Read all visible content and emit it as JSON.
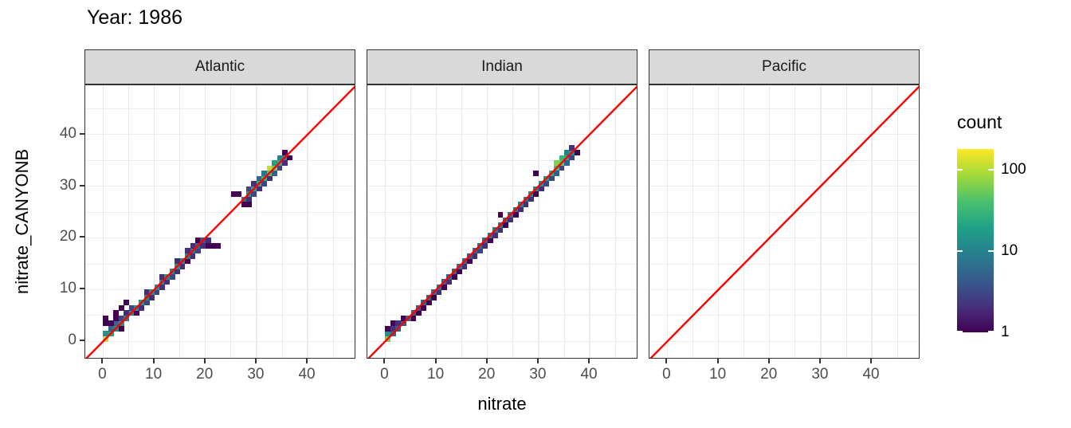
{
  "title": "Year: 1986",
  "chart_data": {
    "type": "heatmap",
    "subtype": "bin2d-scatter-comparison",
    "title": "Year: 1986",
    "xlabel": "nitrate",
    "ylabel": "nitrate_CANYONB",
    "xlim": [
      -3.5,
      49.5
    ],
    "ylim": [
      -3.5,
      49.5
    ],
    "x_ticks": [
      0,
      10,
      20,
      30,
      40
    ],
    "y_ticks": [
      0,
      10,
      20,
      30,
      40
    ],
    "grid_minor": [
      5,
      15,
      25,
      35,
      45
    ],
    "grid": "on",
    "reference_line": {
      "equation": "y = x",
      "color": "#ff0000"
    },
    "colors": {
      "strip_fill": "#d9d9d9",
      "panel_border": "#333333",
      "grid": "#ebebeb",
      "axis_text": "#4d4d4d",
      "viridis_stops": [
        "#440154",
        "#46327e",
        "#365c8d",
        "#277f8e",
        "#1fa187",
        "#4ac16d",
        "#a0da39",
        "#fde725"
      ]
    },
    "legend": {
      "title": "count",
      "scale": "log10",
      "ticks": [
        1,
        10,
        100
      ],
      "range": [
        1,
        180
      ],
      "position": "right"
    },
    "facets": [
      {
        "label": "Atlantic",
        "bins": [
          [
            0,
            0,
            120
          ],
          [
            0,
            1,
            15
          ],
          [
            1,
            1,
            22
          ],
          [
            1,
            2,
            5
          ],
          [
            2,
            2,
            12
          ],
          [
            2,
            3,
            6
          ],
          [
            3,
            3,
            14
          ],
          [
            3,
            4,
            3
          ],
          [
            4,
            4,
            10
          ],
          [
            4,
            5,
            2
          ],
          [
            5,
            5,
            12
          ],
          [
            5,
            6,
            3
          ],
          [
            6,
            5,
            1
          ],
          [
            6,
            6,
            14
          ],
          [
            7,
            6,
            2
          ],
          [
            7,
            7,
            16
          ],
          [
            8,
            7,
            3
          ],
          [
            8,
            8,
            12
          ],
          [
            8,
            9,
            2
          ],
          [
            9,
            8,
            2
          ],
          [
            9,
            9,
            14
          ],
          [
            10,
            9,
            3
          ],
          [
            10,
            10,
            16
          ],
          [
            11,
            10,
            2
          ],
          [
            11,
            11,
            12
          ],
          [
            11,
            12,
            2
          ],
          [
            12,
            11,
            2
          ],
          [
            12,
            12,
            14
          ],
          [
            13,
            12,
            3
          ],
          [
            13,
            13,
            12
          ],
          [
            14,
            13,
            2
          ],
          [
            14,
            14,
            16
          ],
          [
            14,
            15,
            2
          ],
          [
            15,
            14,
            2
          ],
          [
            15,
            15,
            12
          ],
          [
            16,
            15,
            1
          ],
          [
            16,
            16,
            10
          ],
          [
            16,
            17,
            2
          ],
          [
            17,
            16,
            2
          ],
          [
            17,
            17,
            8
          ],
          [
            17,
            18,
            2
          ],
          [
            18,
            17,
            3
          ],
          [
            18,
            18,
            6
          ],
          [
            18,
            19,
            1
          ],
          [
            19,
            18,
            2
          ],
          [
            19,
            19,
            4
          ],
          [
            20,
            18,
            1
          ],
          [
            20,
            19,
            2
          ],
          [
            21,
            18,
            1
          ],
          [
            22,
            18,
            1
          ],
          [
            0,
            3,
            1
          ],
          [
            0,
            4,
            1
          ],
          [
            1,
            3,
            1
          ],
          [
            2,
            4,
            1
          ],
          [
            2,
            5,
            1
          ],
          [
            3,
            6,
            1
          ],
          [
            4,
            7,
            1
          ],
          [
            3,
            2,
            1
          ],
          [
            25,
            28,
            1
          ],
          [
            26,
            28,
            1
          ],
          [
            27,
            26,
            1
          ],
          [
            27,
            27,
            8
          ],
          [
            28,
            26,
            1
          ],
          [
            28,
            27,
            2
          ],
          [
            28,
            28,
            16
          ],
          [
            28,
            29,
            3
          ],
          [
            29,
            28,
            3
          ],
          [
            29,
            29,
            22
          ],
          [
            29,
            30,
            2
          ],
          [
            30,
            29,
            2
          ],
          [
            30,
            30,
            26
          ],
          [
            30,
            31,
            5
          ],
          [
            31,
            30,
            3
          ],
          [
            31,
            31,
            32
          ],
          [
            31,
            32,
            8
          ],
          [
            32,
            31,
            2
          ],
          [
            32,
            32,
            45
          ],
          [
            32,
            33,
            110
          ],
          [
            33,
            32,
            5
          ],
          [
            33,
            33,
            60
          ],
          [
            33,
            34,
            20
          ],
          [
            34,
            33,
            3
          ],
          [
            34,
            34,
            26
          ],
          [
            34,
            35,
            10
          ],
          [
            35,
            34,
            2
          ],
          [
            35,
            35,
            14
          ],
          [
            35,
            36,
            1
          ],
          [
            36,
            35,
            1
          ]
        ]
      },
      {
        "label": "Indian",
        "bins": [
          [
            0,
            0,
            60
          ],
          [
            0,
            1,
            14
          ],
          [
            0,
            2,
            1
          ],
          [
            1,
            1,
            6
          ],
          [
            1,
            2,
            2
          ],
          [
            1,
            3,
            1
          ],
          [
            2,
            2,
            5
          ],
          [
            2,
            3,
            2
          ],
          [
            3,
            3,
            5
          ],
          [
            3,
            4,
            1
          ],
          [
            4,
            4,
            6
          ],
          [
            5,
            4,
            1
          ],
          [
            5,
            5,
            5
          ],
          [
            6,
            5,
            1
          ],
          [
            6,
            6,
            5
          ],
          [
            7,
            6,
            1
          ],
          [
            7,
            7,
            6
          ],
          [
            8,
            7,
            1
          ],
          [
            8,
            8,
            5
          ],
          [
            9,
            8,
            1
          ],
          [
            9,
            9,
            6
          ],
          [
            10,
            9,
            2
          ],
          [
            10,
            10,
            7
          ],
          [
            11,
            10,
            1
          ],
          [
            11,
            11,
            6
          ],
          [
            12,
            11,
            2
          ],
          [
            12,
            12,
            5
          ],
          [
            13,
            12,
            1
          ],
          [
            13,
            13,
            6
          ],
          [
            14,
            13,
            1
          ],
          [
            14,
            14,
            7
          ],
          [
            15,
            14,
            2
          ],
          [
            15,
            15,
            6
          ],
          [
            16,
            15,
            1
          ],
          [
            16,
            16,
            5
          ],
          [
            17,
            16,
            2
          ],
          [
            17,
            17,
            6
          ],
          [
            18,
            17,
            3
          ],
          [
            18,
            18,
            7
          ],
          [
            19,
            18,
            2
          ],
          [
            19,
            19,
            6
          ],
          [
            20,
            19,
            1
          ],
          [
            20,
            20,
            7
          ],
          [
            21,
            20,
            2
          ],
          [
            21,
            21,
            9
          ],
          [
            22,
            21,
            2
          ],
          [
            22,
            22,
            7
          ],
          [
            22,
            24,
            1
          ],
          [
            23,
            22,
            1
          ],
          [
            23,
            23,
            6
          ],
          [
            24,
            23,
            2
          ],
          [
            24,
            24,
            7
          ],
          [
            25,
            24,
            1
          ],
          [
            25,
            25,
            9
          ],
          [
            26,
            25,
            2
          ],
          [
            26,
            26,
            11
          ],
          [
            27,
            26,
            2
          ],
          [
            27,
            27,
            9
          ],
          [
            28,
            27,
            2
          ],
          [
            28,
            28,
            11
          ],
          [
            29,
            28,
            1
          ],
          [
            29,
            29,
            13
          ],
          [
            29,
            32,
            1
          ],
          [
            30,
            29,
            2
          ],
          [
            30,
            30,
            16
          ],
          [
            31,
            30,
            3
          ],
          [
            31,
            31,
            19
          ],
          [
            32,
            31,
            3
          ],
          [
            32,
            32,
            26
          ],
          [
            33,
            32,
            5
          ],
          [
            33,
            33,
            38
          ],
          [
            33,
            34,
            65
          ],
          [
            34,
            33,
            3
          ],
          [
            34,
            34,
            48
          ],
          [
            34,
            35,
            30
          ],
          [
            35,
            34,
            5
          ],
          [
            35,
            35,
            26
          ],
          [
            35,
            36,
            10
          ],
          [
            36,
            35,
            3
          ],
          [
            36,
            36,
            13
          ],
          [
            36,
            37,
            2
          ],
          [
            37,
            36,
            1
          ]
        ]
      },
      {
        "label": "Pacific",
        "bins": []
      }
    ]
  }
}
